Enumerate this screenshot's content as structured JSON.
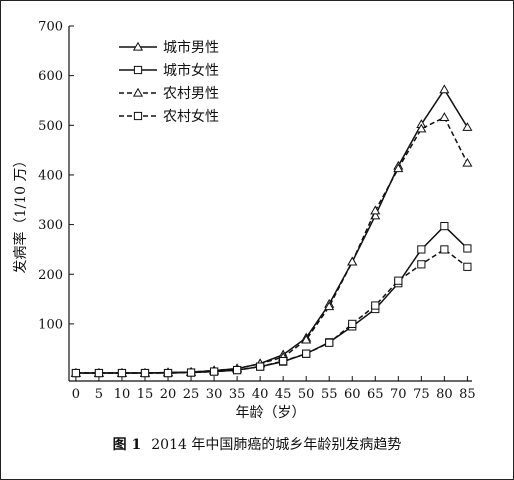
{
  "caption": {
    "figure_label": "图 1",
    "text": "2014 年中国肺癌的城乡年龄别发病趋势"
  },
  "chart_data": {
    "type": "line",
    "title": "",
    "xlabel": "年龄（岁）",
    "ylabel": "发病率（1/10 万）",
    "x": [
      0,
      5,
      10,
      15,
      20,
      25,
      30,
      35,
      40,
      45,
      50,
      55,
      60,
      65,
      70,
      75,
      80,
      85
    ],
    "xticks": [
      0,
      5,
      10,
      15,
      20,
      25,
      30,
      35,
      40,
      45,
      50,
      55,
      60,
      65,
      70,
      75,
      80,
      85
    ],
    "yticks": [
      100,
      200,
      300,
      400,
      500,
      600,
      700
    ],
    "xlim": [
      -1.5,
      86
    ],
    "ylim": [
      -15,
      700
    ],
    "grid": false,
    "legend_position": "top-left",
    "series": [
      {
        "name": "城市男性",
        "line_style": "solid",
        "marker": "triangle",
        "values": [
          1,
          1,
          1,
          1,
          2,
          3,
          6,
          10,
          20,
          38,
          72,
          140,
          225,
          318,
          418,
          502,
          572,
          496
        ]
      },
      {
        "name": "城市女性",
        "line_style": "solid",
        "marker": "square",
        "values": [
          1,
          1,
          1,
          1,
          1,
          2,
          4,
          7,
          14,
          24,
          40,
          63,
          95,
          130,
          182,
          250,
          297,
          252
        ]
      },
      {
        "name": "农村男性",
        "line_style": "dashed",
        "marker": "triangle",
        "values": [
          1,
          1,
          1,
          1,
          2,
          3,
          6,
          10,
          20,
          33,
          68,
          135,
          225,
          328,
          413,
          493,
          516,
          424
        ]
      },
      {
        "name": "农村女性",
        "line_style": "dashed",
        "marker": "square",
        "values": [
          1,
          1,
          1,
          1,
          1,
          2,
          4,
          7,
          14,
          25,
          40,
          62,
          100,
          137,
          187,
          220,
          250,
          215
        ]
      }
    ]
  }
}
